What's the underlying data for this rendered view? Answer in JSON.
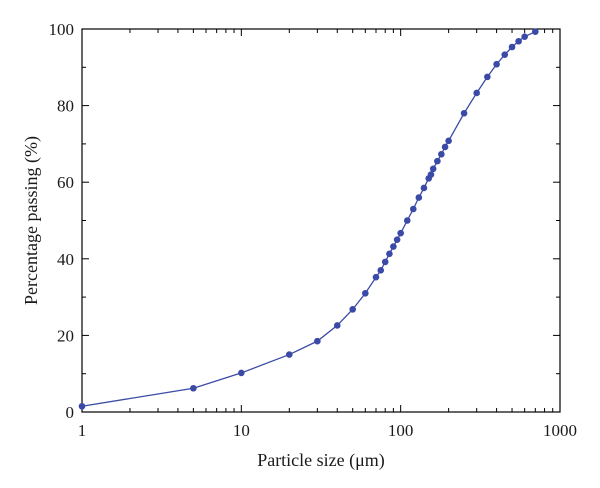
{
  "chart_data": {
    "type": "line",
    "xlabel": "Particle size (μm)",
    "ylabel": "Percentage passing (%)",
    "xscale": "log",
    "xlim": [
      1,
      1000
    ],
    "ylim": [
      0,
      100
    ],
    "x_tick_labels": [
      "1",
      "10",
      "100",
      "1000"
    ],
    "y_tick_labels": [
      "0",
      "20",
      "40",
      "60",
      "80",
      "100"
    ],
    "x_ticks": [
      1,
      10,
      100,
      1000
    ],
    "y_ticks": [
      0,
      20,
      40,
      60,
      80,
      100
    ],
    "grid": false,
    "legend": "none",
    "series": [
      {
        "color": "#3a4aa6",
        "marker": "circle",
        "x": [
          1,
          5,
          10,
          20,
          30,
          40,
          50,
          60,
          70,
          75,
          80,
          85,
          90,
          95,
          100,
          110,
          120,
          130,
          140,
          150,
          155,
          160,
          170,
          180,
          190,
          200,
          250,
          300,
          350,
          400,
          450,
          500,
          550,
          600,
          700
        ],
        "y": [
          1.5,
          6.2,
          10.2,
          15.0,
          18.5,
          22.6,
          26.8,
          31.0,
          35.2,
          37.0,
          39.2,
          41.3,
          43.2,
          45.0,
          46.7,
          50.0,
          53.0,
          56.0,
          58.5,
          61.0,
          62.0,
          63.5,
          65.5,
          67.3,
          69.2,
          70.8,
          78.0,
          83.3,
          87.5,
          90.8,
          93.3,
          95.3,
          96.8,
          98.0,
          99.3
        ]
      }
    ]
  }
}
